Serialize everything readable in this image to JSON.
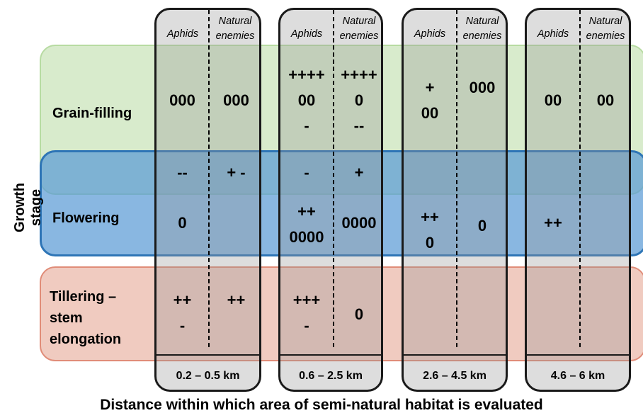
{
  "axis": {
    "y_title": "Growth stage",
    "x_title": "Distance within which area of semi-natural habitat is evaluated"
  },
  "stages": {
    "grain_filling": "Grain-filling",
    "flowering": "Flowering",
    "tillering": "Tillering –\nstem\nelongation"
  },
  "columns": {
    "aphids": "Aphids",
    "natural_enemies": "Natural\nenemies"
  },
  "panels": [
    {
      "range": "0.2 – 0.5 km",
      "cells": {
        "gf_aph": "000",
        "gf_ne": "000",
        "ov_aph": "--",
        "ov_ne": "+ -",
        "fl_aph": "0",
        "fl_ne": "",
        "ti_aph": "++\n-",
        "ti_ne": "++"
      }
    },
    {
      "range": "0.6 – 2.5 km",
      "cells": {
        "gf_aph": "++++\n00\n-",
        "gf_ne": "++++\n0\n--",
        "ov_aph": "-",
        "ov_ne": "+",
        "fl_aph": "++\n0000",
        "fl_ne": "0000",
        "ti_aph": "+++\n-",
        "ti_ne": "0"
      }
    },
    {
      "range": "2.6 – 4.5 km",
      "cells": {
        "gf_aph": "+\n00",
        "gf_ne": "000",
        "ov_aph": "",
        "ov_ne": "",
        "fl_aph": "++\n0",
        "fl_ne": "0",
        "ti_aph": "",
        "ti_ne": ""
      }
    },
    {
      "range": "4.6 – 6 km",
      "cells": {
        "gf_aph": "00",
        "gf_ne": "00",
        "ov_aph": "",
        "ov_ne": "",
        "fl_aph": "++",
        "fl_ne": "",
        "ti_aph": "",
        "ti_ne": ""
      }
    }
  ]
}
